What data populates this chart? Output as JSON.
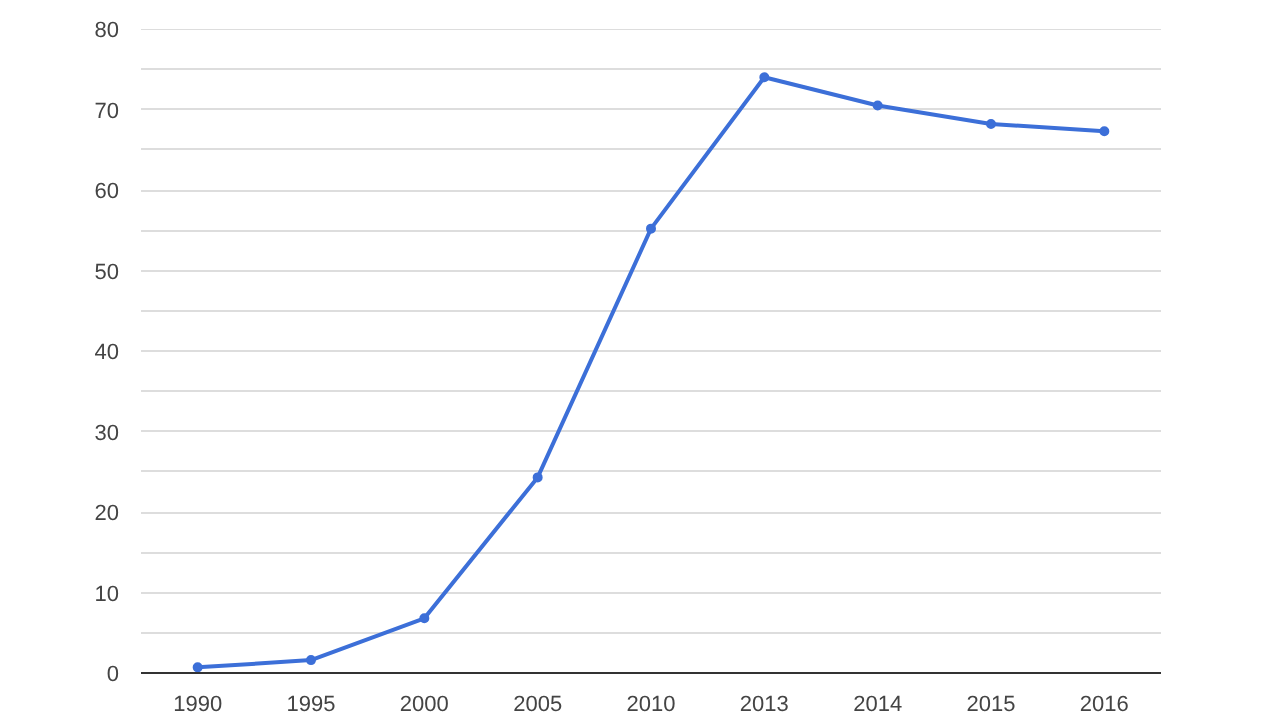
{
  "chart_data": {
    "type": "line",
    "categories": [
      "1990",
      "1995",
      "2000",
      "2005",
      "2010",
      "2013",
      "2014",
      "2015",
      "2016"
    ],
    "series": [
      {
        "color": "#3c6fd8",
        "values": [
          0.7,
          1.6,
          6.8,
          24.3,
          55.2,
          74.0,
          70.5,
          68.2,
          67.3
        ]
      }
    ],
    "ylim": [
      0,
      80
    ],
    "yticks": [
      0,
      {
        "value": 5,
        "label": null
      },
      10,
      {
        "value": 15,
        "label": null
      },
      20,
      {
        "value": 25,
        "label": null
      },
      30,
      {
        "value": 35,
        "label": null
      },
      40,
      {
        "value": 45,
        "label": null
      },
      50,
      {
        "value": 55,
        "label": null
      },
      60,
      {
        "value": 65,
        "label": null
      },
      70,
      {
        "value": 75,
        "label": null
      },
      80
    ],
    "grid": "y",
    "marker": "circle",
    "line_style": "solid"
  }
}
